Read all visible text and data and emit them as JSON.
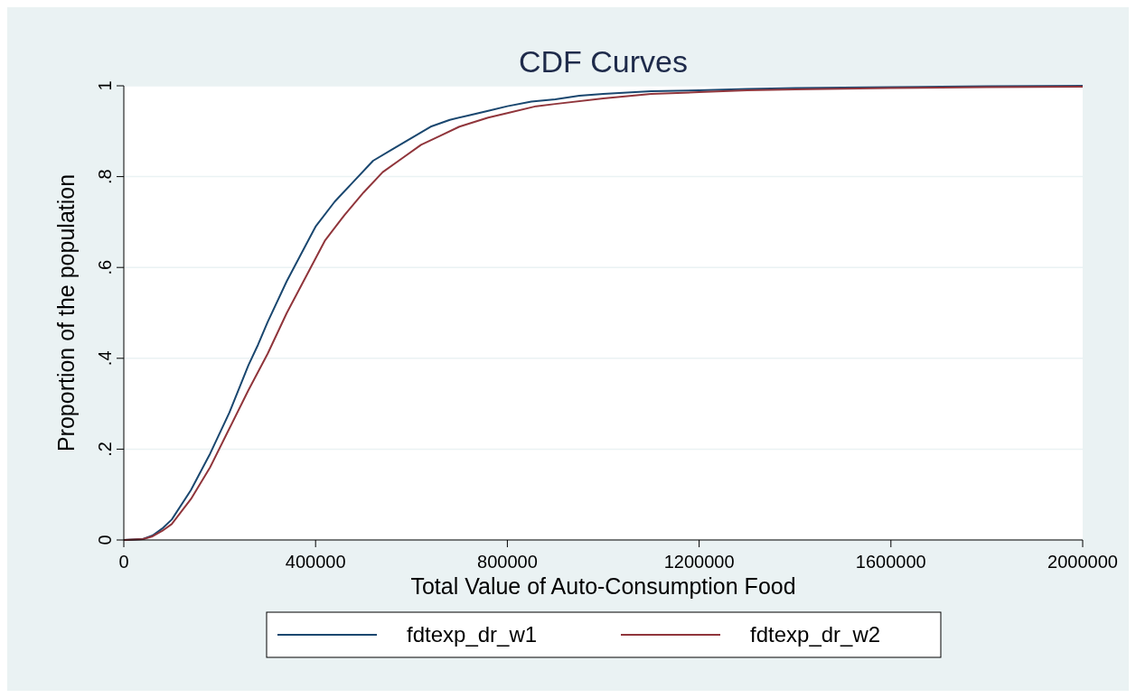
{
  "chart_data": {
    "type": "line",
    "title": "CDF Curves",
    "xlabel": "Total Value of Auto-Consumption Food",
    "ylabel": "Proportion of the population",
    "xlim": [
      0,
      2000000
    ],
    "xticks": [
      0,
      400000,
      800000,
      1200000,
      1600000,
      2000000
    ],
    "ylim": [
      0,
      1
    ],
    "yticks": [
      0,
      {
        "value": 0.2,
        "label": ".2"
      },
      {
        "value": 0.4,
        "label": ".4"
      },
      {
        "value": 0.6,
        "label": ".6"
      },
      {
        "value": 0.8,
        "label": ".8"
      },
      1
    ],
    "grid": "y",
    "legend": "bottom",
    "marker": "none",
    "line_style": "solid",
    "series": [
      {
        "name": "fdtexp_dr_w1",
        "color": "#1a476f",
        "x": [
          0,
          40000,
          60000,
          80000,
          100000,
          140000,
          180000,
          220000,
          260000,
          280000,
          300000,
          340000,
          380000,
          400000,
          440000,
          480000,
          520000,
          560000,
          600000,
          640000,
          680000,
          720000,
          760000,
          800000,
          850000,
          900000,
          950000,
          1000000,
          1100000,
          1200000,
          1300000,
          1400000,
          1600000,
          1800000,
          2000000
        ],
        "values": [
          0,
          0.002,
          0.01,
          0.025,
          0.045,
          0.11,
          0.19,
          0.28,
          0.385,
          0.43,
          0.48,
          0.57,
          0.65,
          0.69,
          0.745,
          0.79,
          0.835,
          0.86,
          0.885,
          0.91,
          0.925,
          0.935,
          0.945,
          0.955,
          0.965,
          0.97,
          0.978,
          0.982,
          0.988,
          0.99,
          0.993,
          0.995,
          0.997,
          0.999,
          1
        ]
      },
      {
        "name": "fdtexp_dr_w2",
        "color": "#90353b",
        "x": [
          0,
          40000,
          60000,
          80000,
          100000,
          140000,
          180000,
          220000,
          260000,
          300000,
          340000,
          380000,
          420000,
          460000,
          500000,
          540000,
          580000,
          620000,
          660000,
          700000,
          760000,
          800000,
          860000,
          900000,
          1000000,
          1100000,
          1200000,
          1300000,
          1400000,
          1600000,
          1800000,
          2000000
        ],
        "values": [
          0,
          0.002,
          0.008,
          0.02,
          0.035,
          0.09,
          0.16,
          0.245,
          0.33,
          0.41,
          0.5,
          0.58,
          0.66,
          0.715,
          0.765,
          0.81,
          0.84,
          0.87,
          0.89,
          0.91,
          0.93,
          0.94,
          0.955,
          0.96,
          0.972,
          0.982,
          0.986,
          0.99,
          0.992,
          0.995,
          0.997,
          0.998
        ]
      }
    ]
  }
}
